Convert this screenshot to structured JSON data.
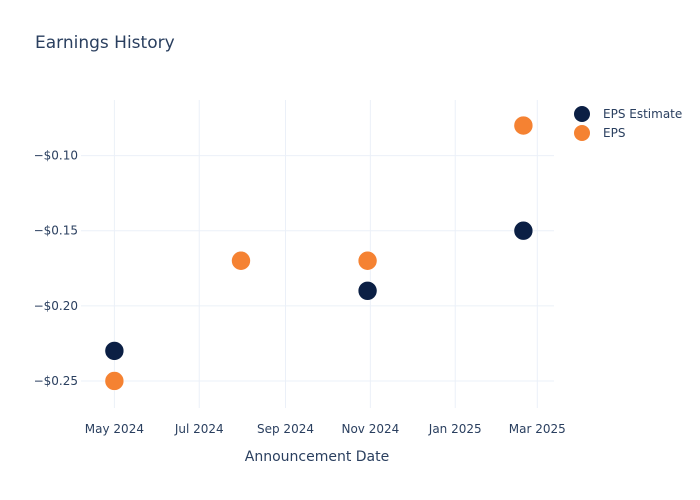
{
  "chart_data": {
    "type": "scatter",
    "title": "Earnings History",
    "xlabel": "Announcement Date",
    "ylabel": "",
    "x_ticks": [
      "May 2024",
      "Jul 2024",
      "Sep 2024",
      "Nov 2024",
      "Jan 2025",
      "Mar 2025"
    ],
    "x_tick_dates": [
      "2024-05-01",
      "2024-07-01",
      "2024-09-01",
      "2024-11-01",
      "2025-01-01",
      "2025-03-01"
    ],
    "y_ticks": [
      -0.25,
      -0.2,
      -0.15,
      -0.1
    ],
    "y_tick_labels": [
      "−$0.25",
      "−$0.20",
      "−$0.15",
      "−$0.10"
    ],
    "xlim": [
      "2024-04-07",
      "2025-03-13"
    ],
    "ylim": [
      -0.268,
      -0.063
    ],
    "grid": true,
    "legend_position": "top-right",
    "series": [
      {
        "name": "EPS Estimate",
        "color": "#0b1f44",
        "points": [
          {
            "x": "2024-05-01",
            "y": -0.23
          },
          {
            "x": "2024-07-31",
            "y": -0.17
          },
          {
            "x": "2024-10-30",
            "y": -0.19
          },
          {
            "x": "2025-02-19",
            "y": -0.15
          }
        ]
      },
      {
        "name": "EPS",
        "color": "#f58232",
        "points": [
          {
            "x": "2024-05-01",
            "y": -0.25
          },
          {
            "x": "2024-07-31",
            "y": -0.17
          },
          {
            "x": "2024-10-30",
            "y": -0.17
          },
          {
            "x": "2025-02-19",
            "y": -0.08
          }
        ]
      }
    ]
  }
}
